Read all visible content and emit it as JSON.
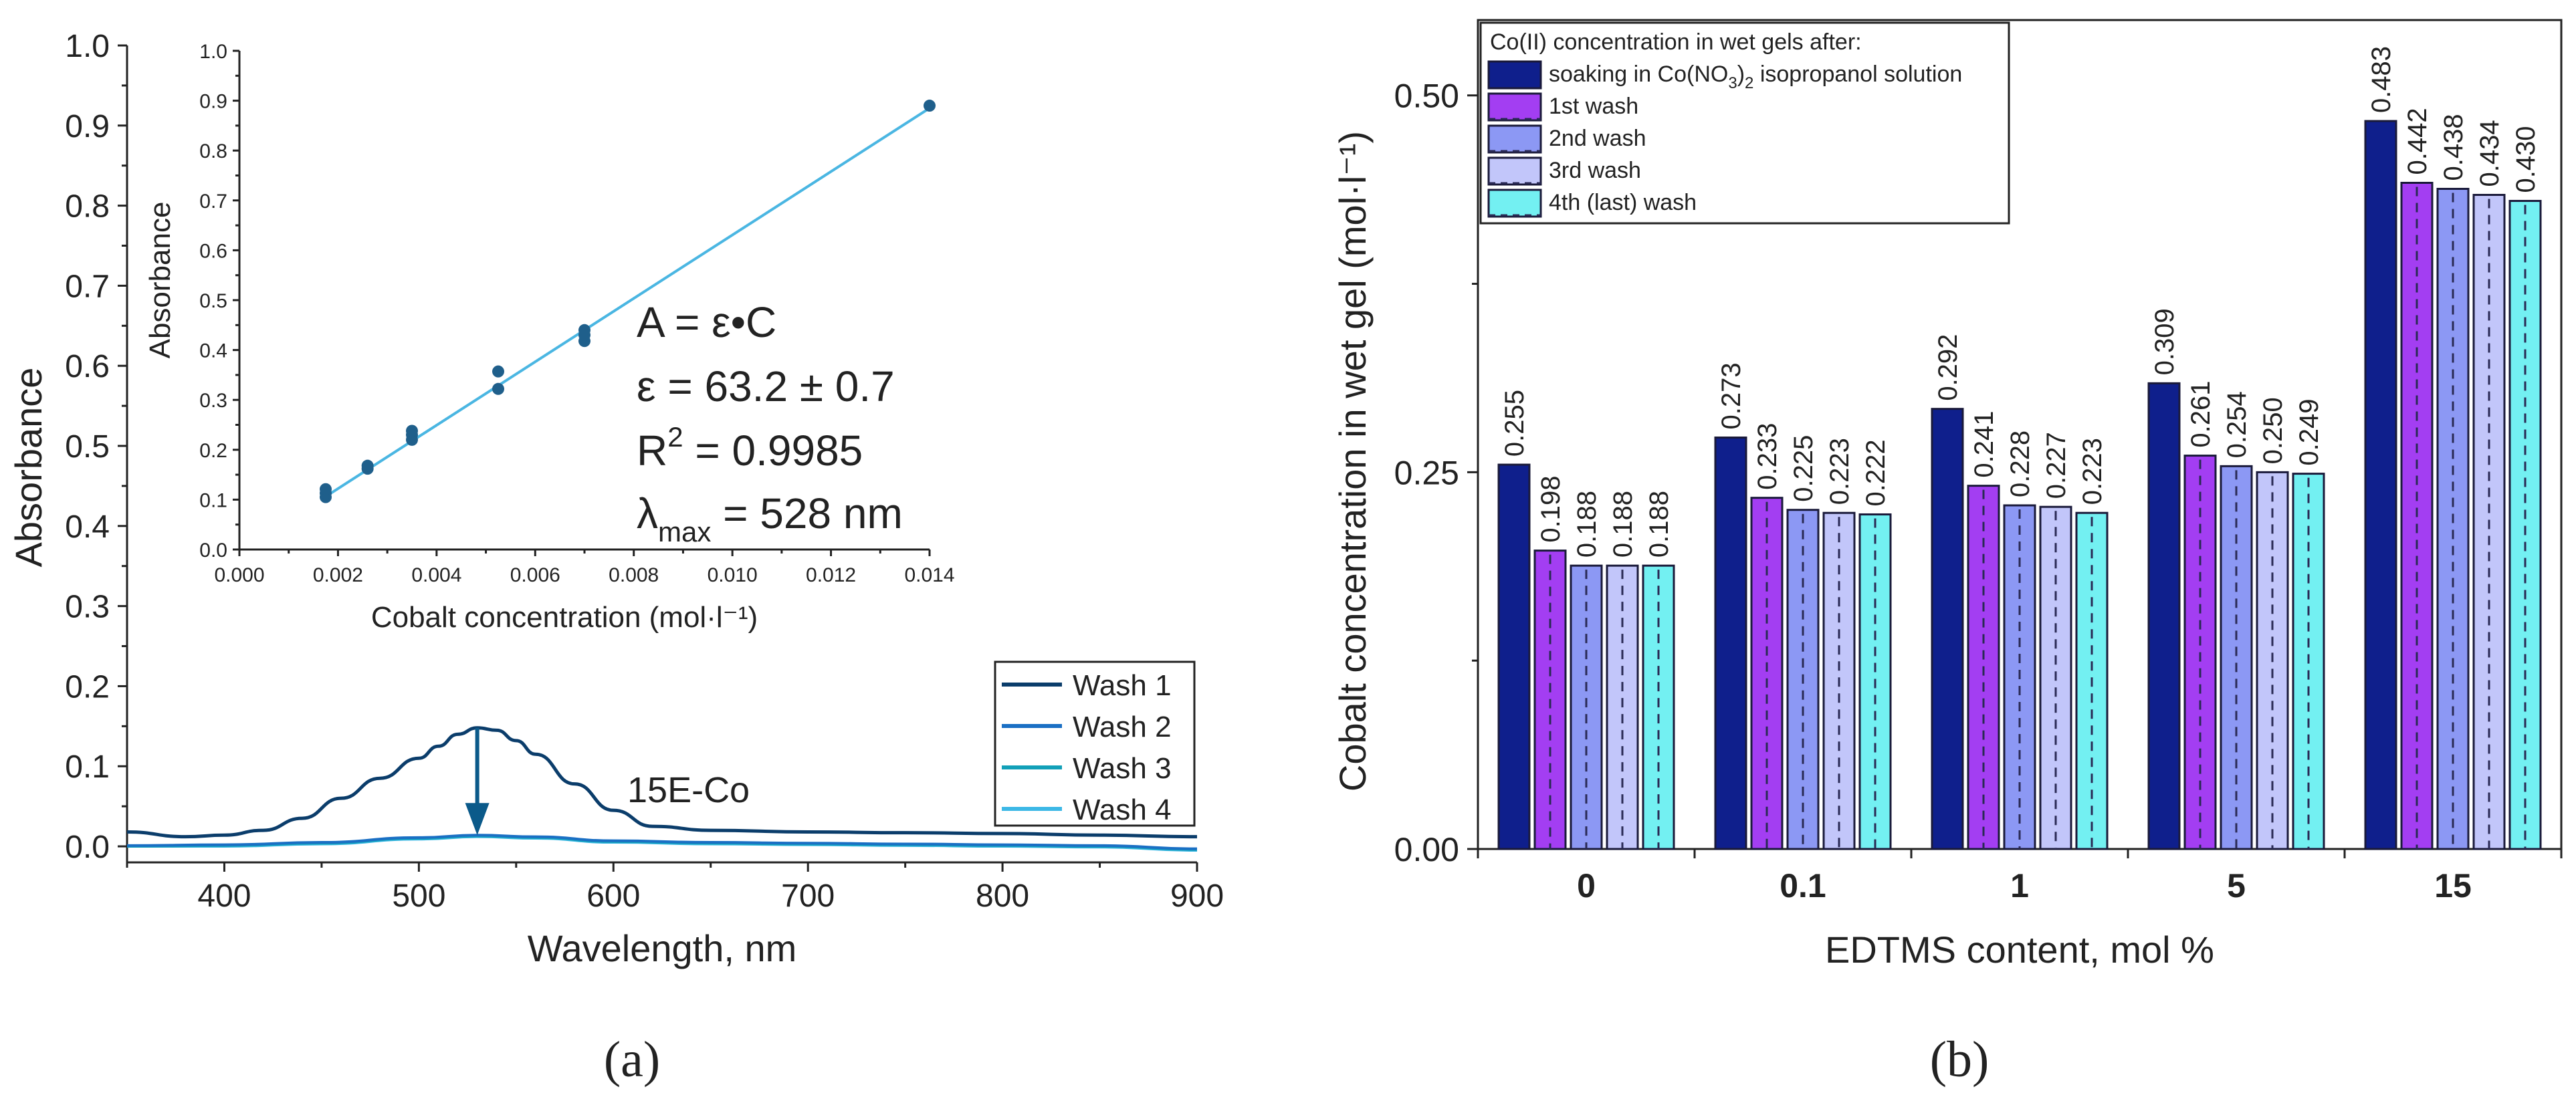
{
  "panel_labels": {
    "a": "(a)",
    "b": "(b)"
  },
  "colors": {
    "wash1": "#0b3d6b",
    "wash2": "#1a6fc4",
    "wash3": "#12a0b8",
    "wash4": "#3cb8e6",
    "fit_line": "#4ab6e2",
    "fit_points": "#1f5f8b",
    "arrow": "#0b5a8a",
    "bar_soak": "#0f1f8c",
    "bar_w1": "#a33ef2",
    "bar_w2": "#8c98f4",
    "bar_w3": "#c2c6fa",
    "bar_w4": "#73f0f2"
  },
  "chart_data": [
    {
      "id": "a_main",
      "type": "line",
      "title": "",
      "xlabel": "Wavelength, nm",
      "ylabel": "Absorbance",
      "xlim": [
        350,
        900
      ],
      "ylim": [
        -0.02,
        1.0
      ],
      "xticks": [
        400,
        500,
        600,
        700,
        800,
        900
      ],
      "yticks": [
        0.0,
        0.1,
        0.2,
        0.3,
        0.4,
        0.5,
        0.6,
        0.7,
        0.8,
        0.9,
        1.0
      ],
      "xtick_labels": [
        "400",
        "500",
        "600",
        "700",
        "800",
        "900"
      ],
      "ytick_labels": [
        "0.0",
        "0.1",
        "0.2",
        "0.3",
        "0.4",
        "0.5",
        "0.6",
        "0.7",
        "0.8",
        "0.9",
        "1.0"
      ],
      "annotation": "15E-Co",
      "arrow": {
        "x": 530,
        "y_from": 0.148,
        "y_to": 0.014
      },
      "series": [
        {
          "name": "Wash 1",
          "x": [
            350,
            380,
            400,
            420,
            440,
            460,
            480,
            500,
            510,
            520,
            530,
            540,
            550,
            560,
            580,
            600,
            620,
            650,
            700,
            750,
            800,
            850,
            900
          ],
          "y": [
            0.018,
            0.012,
            0.014,
            0.02,
            0.035,
            0.06,
            0.085,
            0.11,
            0.125,
            0.14,
            0.148,
            0.145,
            0.132,
            0.115,
            0.078,
            0.045,
            0.025,
            0.02,
            0.018,
            0.017,
            0.016,
            0.014,
            0.012
          ]
        },
        {
          "name": "Wash 2",
          "x": [
            350,
            400,
            450,
            500,
            530,
            560,
            600,
            650,
            700,
            750,
            800,
            850,
            900
          ],
          "y": [
            0.001,
            0.002,
            0.005,
            0.011,
            0.014,
            0.012,
            0.007,
            0.005,
            0.004,
            0.003,
            0.002,
            0.001,
            -0.003
          ]
        },
        {
          "name": "Wash 3",
          "x": [
            350,
            400,
            450,
            500,
            530,
            560,
            600,
            650,
            700,
            750,
            800,
            850,
            900
          ],
          "y": [
            0.0,
            0.001,
            0.004,
            0.01,
            0.013,
            0.011,
            0.006,
            0.004,
            0.003,
            0.002,
            0.001,
            0.0,
            -0.004
          ]
        },
        {
          "name": "Wash 4",
          "x": [
            350,
            400,
            450,
            500,
            530,
            560,
            600,
            650,
            700,
            750,
            800,
            850,
            900
          ],
          "y": [
            0.0,
            0.0,
            0.003,
            0.009,
            0.012,
            0.01,
            0.005,
            0.003,
            0.002,
            0.001,
            0.0,
            -0.001,
            -0.005
          ]
        }
      ],
      "legend": [
        "Wash 1",
        "Wash 2",
        "Wash 3",
        "Wash 4"
      ],
      "legend_position": "bottom-right"
    },
    {
      "id": "a_inset",
      "type": "scatter",
      "title": "",
      "xlabel": "Cobalt concentration (mol·l⁻¹)",
      "ylabel": "Absorbance",
      "xlim": [
        0.0,
        0.014
      ],
      "ylim": [
        0.0,
        1.0
      ],
      "xticks": [
        0.0,
        0.002,
        0.004,
        0.006,
        0.008,
        0.01,
        0.012,
        0.014
      ],
      "xtick_labels": [
        "0.000",
        "0.002",
        "0.004",
        "0.006",
        "0.008",
        "0.010",
        "0.012",
        "0.014"
      ],
      "yticks": [
        0.0,
        0.1,
        0.2,
        0.3,
        0.4,
        0.5,
        0.6,
        0.7,
        0.8,
        0.9,
        1.0
      ],
      "ytick_labels": [
        "0.0",
        "0.1",
        "0.2",
        "0.3",
        "0.4",
        "0.5",
        "0.6",
        "0.7",
        "0.8",
        "0.9",
        "1.0"
      ],
      "points": {
        "x": [
          0.00175,
          0.00175,
          0.00175,
          0.0026,
          0.0026,
          0.0035,
          0.0035,
          0.0035,
          0.00525,
          0.00525,
          0.007,
          0.007,
          0.007,
          0.014
        ],
        "y": [
          0.105,
          0.113,
          0.121,
          0.162,
          0.168,
          0.22,
          0.23,
          0.238,
          0.322,
          0.357,
          0.418,
          0.43,
          0.44,
          0.89
        ]
      },
      "fit": {
        "x": [
          0.0017,
          0.014
        ],
        "y": [
          0.103,
          0.885
        ]
      },
      "equation_lines": {
        "eq": "A = ε•C",
        "epsilon": "ε = 63.2 ± 0.7",
        "r2_prefix": "R",
        "r2_sup": "2",
        "r2_suffix": " = 0.9985",
        "lambda_prefix": "λ",
        "lambda_sub": "max",
        "lambda_suffix": " = 528 nm"
      }
    },
    {
      "id": "b",
      "type": "bar",
      "title": "",
      "xlabel": "EDTMS content, mol %",
      "ylabel": "Cobalt concentration in wet gel (mol·l⁻¹)",
      "ylim": [
        0.0,
        0.55
      ],
      "yticks": [
        0.0,
        0.25,
        0.5
      ],
      "ytick_labels": [
        "0.00",
        "0.25",
        "0.50"
      ],
      "categories": [
        "0",
        "0.1",
        "1",
        "5",
        "15"
      ],
      "legend_title": "Co(II) concentration in wet gels after:",
      "legend_position": "top-left",
      "series": [
        {
          "name": "soaking in Co(NO3)2 isopropanol solution",
          "name_parts": [
            "soaking in Co(NO",
            "3",
            ")",
            "2",
            " isopropanol solution"
          ],
          "values": [
            0.255,
            0.273,
            0.292,
            0.309,
            0.483
          ],
          "labels": [
            "0.255",
            "0.273",
            "0.292",
            "0.309",
            "0.483"
          ]
        },
        {
          "name": "1st wash",
          "values": [
            0.198,
            0.233,
            0.241,
            0.261,
            0.442
          ],
          "labels": [
            "0.198",
            "0.233",
            "0.241",
            "0.261",
            "0.442"
          ]
        },
        {
          "name": "2nd wash",
          "values": [
            0.188,
            0.225,
            0.228,
            0.254,
            0.438
          ],
          "labels": [
            "0.188",
            "0.225",
            "0.228",
            "0.254",
            "0.438"
          ]
        },
        {
          "name": "3rd wash",
          "values": [
            0.188,
            0.223,
            0.227,
            0.25,
            0.434
          ],
          "labels": [
            "0.188",
            "0.223",
            "0.227",
            "0.250",
            "0.434"
          ]
        },
        {
          "name": "4th (last) wash",
          "values": [
            0.188,
            0.222,
            0.223,
            0.249,
            0.43
          ],
          "labels": [
            "0.188",
            "0.222",
            "0.223",
            "0.249",
            "0.430"
          ]
        }
      ]
    }
  ]
}
